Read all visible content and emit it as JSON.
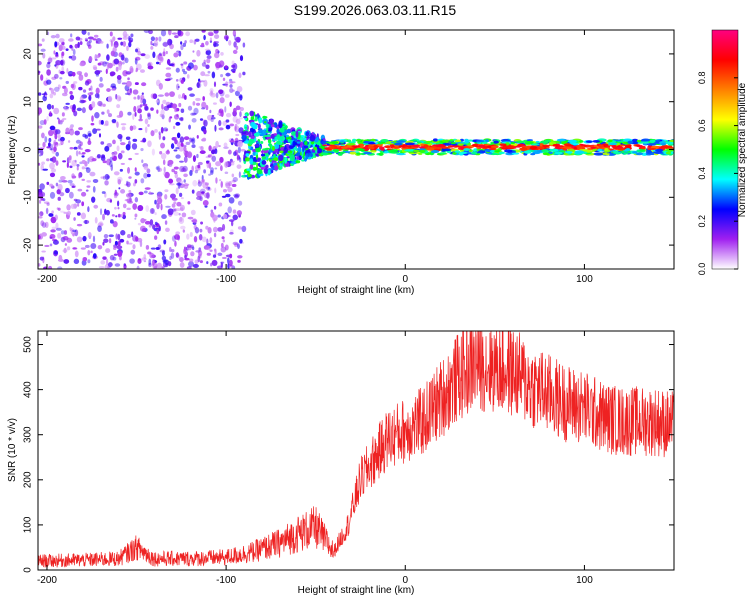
{
  "title": "S199.2026.063.03.11.R15",
  "colors": {
    "snr_line": "#ee2222",
    "axis": "#000000",
    "background": "#ffffff"
  },
  "chart_data": [
    {
      "type": "heatmap",
      "title": "S199.2026.063.03.11.R15",
      "xlabel": "Height of straight line (km)",
      "ylabel": "Frequency (Hz)",
      "xlim": [
        -205,
        150
      ],
      "ylim": [
        -25,
        25
      ],
      "xticks": [
        -200,
        -100,
        0,
        100
      ],
      "yticks": [
        -20,
        -10,
        0,
        10,
        20
      ],
      "colorbar": {
        "label": "Normalized spectral amplitude",
        "range": [
          0.0,
          1.0
        ],
        "ticks": [
          0.0,
          0.2,
          0.4,
          0.6,
          0.8
        ],
        "tick_labels": [
          "0.0",
          "0.2",
          "0.4",
          "0.6",
          "0.8"
        ],
        "colormap": [
          "#ffffff",
          "#a020f0",
          "#0000ff",
          "#00ffff",
          "#00ff00",
          "#ffff00",
          "#ff8000",
          "#ff0000",
          "#ff0080"
        ]
      },
      "regions": [
        {
          "x_range": [
            -205,
            -90
          ],
          "description": "broadband noise",
          "amplitude": 0.15,
          "freq_spread": 25
        },
        {
          "x_range": [
            -90,
            -45
          ],
          "description": "transition with noise",
          "amplitude": 0.3,
          "freq_spread": 6
        },
        {
          "x_range": [
            -45,
            150
          ],
          "description": "carrier tone near 0 Hz",
          "amplitude": 0.85,
          "freq_center": 0.5,
          "freq_spread": 1.5
        }
      ]
    },
    {
      "type": "line",
      "xlabel": "Height of straight line (km)",
      "ylabel": "SNR (10 * v/v)",
      "xlim": [
        -205,
        150
      ],
      "ylim": [
        0,
        530
      ],
      "xticks": [
        -200,
        -100,
        0,
        100
      ],
      "yticks": [
        0,
        100,
        200,
        300,
        400,
        500
      ],
      "series": [
        {
          "name": "SNR",
          "x": [
            -205,
            -180,
            -160,
            -150,
            -140,
            -120,
            -100,
            -85,
            -70,
            -60,
            -50,
            -40,
            -32,
            -25,
            -20,
            -15,
            -10,
            -5,
            0,
            10,
            20,
            30,
            40,
            50,
            60,
            70,
            80,
            90,
            100,
            110,
            120,
            130,
            140,
            150
          ],
          "values": [
            20,
            22,
            25,
            50,
            25,
            25,
            28,
            40,
            60,
            80,
            95,
            40,
            100,
            200,
            230,
            260,
            290,
            300,
            310,
            330,
            380,
            430,
            460,
            450,
            440,
            410,
            390,
            370,
            360,
            340,
            330,
            330,
            330,
            320
          ]
        }
      ]
    }
  ]
}
